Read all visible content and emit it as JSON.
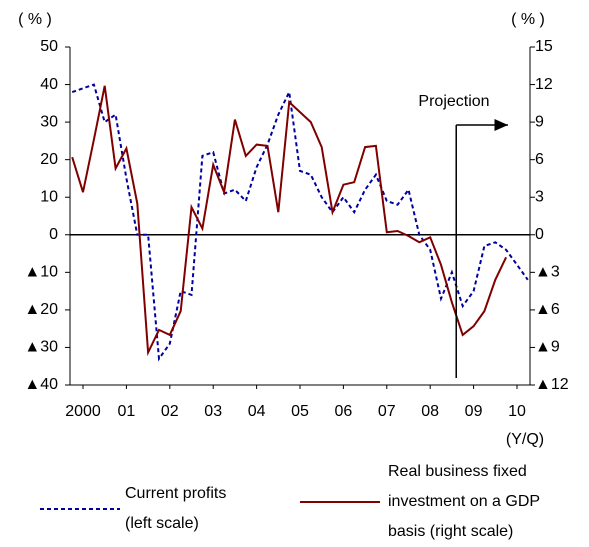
{
  "chart_data": {
    "type": "line",
    "y_unit": "( % )",
    "y2_unit": "( % )",
    "x_label": "(Y/Q)",
    "x": [
      1999.75,
      2000,
      2000.25,
      2000.5,
      2000.75,
      2001,
      2001.25,
      2001.5,
      2001.75,
      2002,
      2002.25,
      2002.5,
      2002.75,
      2003,
      2003.25,
      2003.5,
      2003.75,
      2004,
      2004.25,
      2004.5,
      2004.75,
      2005,
      2005.25,
      2005.5,
      2005.75,
      2006,
      2006.25,
      2006.5,
      2006.75,
      2007,
      2007.25,
      2007.5,
      2007.75,
      2008,
      2008.25,
      2008.5,
      2008.75,
      2009,
      2009.25,
      2009.5,
      2009.75,
      2010,
      2010.25
    ],
    "xlim": [
      1999.7,
      2010.3
    ],
    "xticks": [
      {
        "value": 2000,
        "label": "2000"
      },
      {
        "value": 2001,
        "label": "01"
      },
      {
        "value": 2002,
        "label": "02"
      },
      {
        "value": 2003,
        "label": "03"
      },
      {
        "value": 2004,
        "label": "04"
      },
      {
        "value": 2005,
        "label": "05"
      },
      {
        "value": 2006,
        "label": "06"
      },
      {
        "value": 2007,
        "label": "07"
      },
      {
        "value": 2008,
        "label": "08"
      },
      {
        "value": 2009,
        "label": "09"
      },
      {
        "value": 2010,
        "label": "10"
      }
    ],
    "ylim": [
      -40,
      50
    ],
    "yticks": [
      {
        "value": -40,
        "label": "▲40"
      },
      {
        "value": -30,
        "label": "▲30"
      },
      {
        "value": -20,
        "label": "▲20"
      },
      {
        "value": -10,
        "label": "▲10"
      },
      0,
      10,
      20,
      30,
      40,
      50
    ],
    "y2lim": [
      -12,
      15
    ],
    "y2ticks": [
      {
        "value": -12,
        "label": "▲12"
      },
      {
        "value": -9,
        "label": "▲9"
      },
      {
        "value": -6,
        "label": "▲6"
      },
      {
        "value": -3,
        "label": "▲3"
      },
      0,
      3,
      6,
      9,
      12,
      15
    ],
    "series": [
      {
        "name": "Current profits\n(left scale)",
        "color": "#0000a0",
        "dash": true,
        "values": [
          38,
          39,
          40,
          30,
          32,
          15,
          0,
          0,
          -33,
          -29,
          -15,
          -16,
          21,
          22,
          11,
          12,
          9,
          18,
          24,
          32,
          38,
          17,
          16,
          10,
          6,
          10,
          6,
          12,
          16,
          9,
          8,
          12,
          0,
          -4,
          -17,
          -10,
          -19,
          -15,
          -3,
          -2,
          -4,
          -8,
          -12
        ]
      },
      {
        "name": "Real business fixed\ninvestment on a GDP\nbasis (right scale)",
        "color": "#800000",
        "axis": "y2",
        "values": [
          6.2,
          3.4,
          7.6,
          11.9,
          5.3,
          6.9,
          2.5,
          -9.4,
          -7.6,
          -8,
          -6.1,
          2.2,
          0.5,
          5.6,
          3.4,
          9.2,
          6.3,
          7.2,
          7.1,
          1.8,
          10.6,
          9.8,
          9.0,
          7.0,
          1.8,
          4.0,
          4.2,
          7.0,
          7.1,
          0.2,
          0.3,
          -0.1,
          -0.6,
          -0.2,
          -2.4,
          -5.4,
          -8.0,
          -7.3,
          -6.1,
          -3.6,
          -1.8,
          null,
          null
        ]
      }
    ],
    "annotation": {
      "text": "Projection",
      "x": 2008.6
    }
  }
}
